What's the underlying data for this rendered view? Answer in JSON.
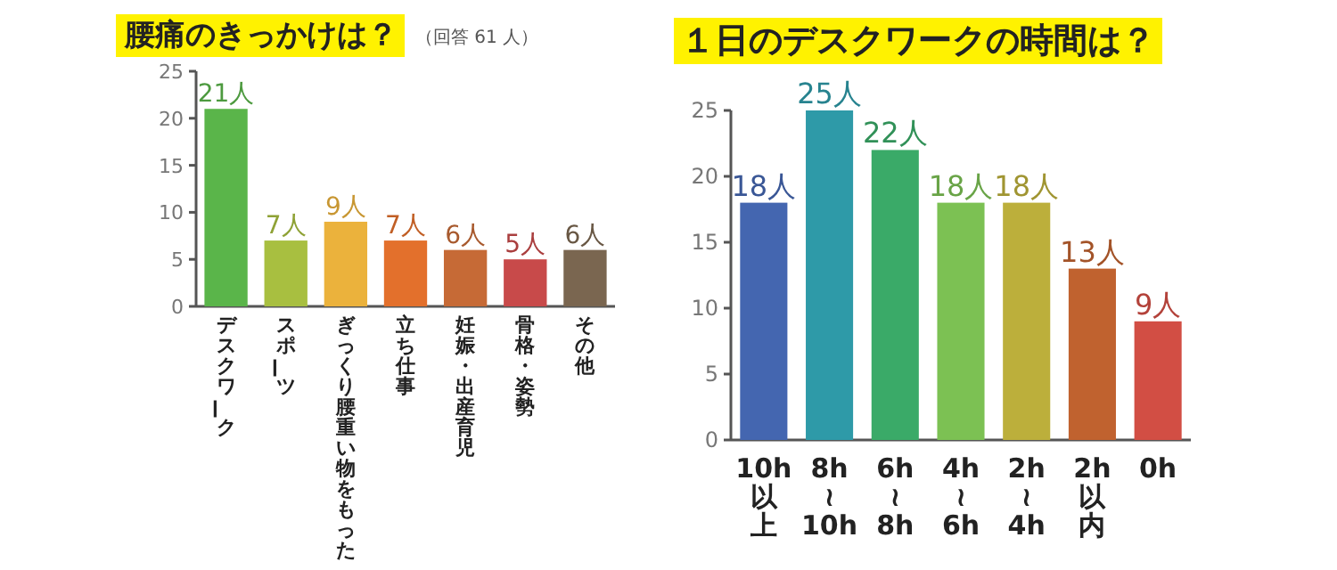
{
  "chart_data": [
    {
      "type": "bar",
      "title": "腰痛のきっかけは？",
      "subtitle": "（回答 61 人）",
      "categories": [
        "デスクワーク",
        "スポーツ",
        "ぎっくり腰重い物をもった",
        "立ち仕事",
        "妊娠・出産育児",
        "骨格・姿勢",
        "その他"
      ],
      "values": [
        21,
        7,
        9,
        7,
        6,
        5,
        6
      ],
      "colors": [
        "#5ab54a",
        "#a8bf40",
        "#ebb23c",
        "#e3702c",
        "#c66a36",
        "#c84a4a",
        "#7a6650"
      ],
      "value_labels": [
        "21人",
        "7人",
        "9人",
        "7人",
        "6人",
        "5人",
        "6人"
      ],
      "ylim": [
        0,
        25
      ],
      "yticks": [
        0,
        5,
        10,
        15,
        20,
        25
      ]
    },
    {
      "type": "bar",
      "title": "１日のデスクワークの時間は？",
      "categories": [
        "10h以上",
        "8h≀10h",
        "6h≀8h",
        "4h≀6h",
        "2h≀4h",
        "2h以内",
        "0h"
      ],
      "values": [
        18,
        25,
        22,
        18,
        18,
        13,
        9
      ],
      "colors": [
        "#4466b0",
        "#2e9aa8",
        "#3aaa68",
        "#7cc153",
        "#bcaf3b",
        "#c0622f",
        "#d24e44"
      ],
      "value_labels": [
        "18人",
        "25人",
        "22人",
        "18人",
        "18人",
        "13人",
        "9人"
      ],
      "ylim": [
        0,
        25
      ],
      "yticks": [
        0,
        5,
        10,
        15,
        20,
        25
      ]
    }
  ]
}
